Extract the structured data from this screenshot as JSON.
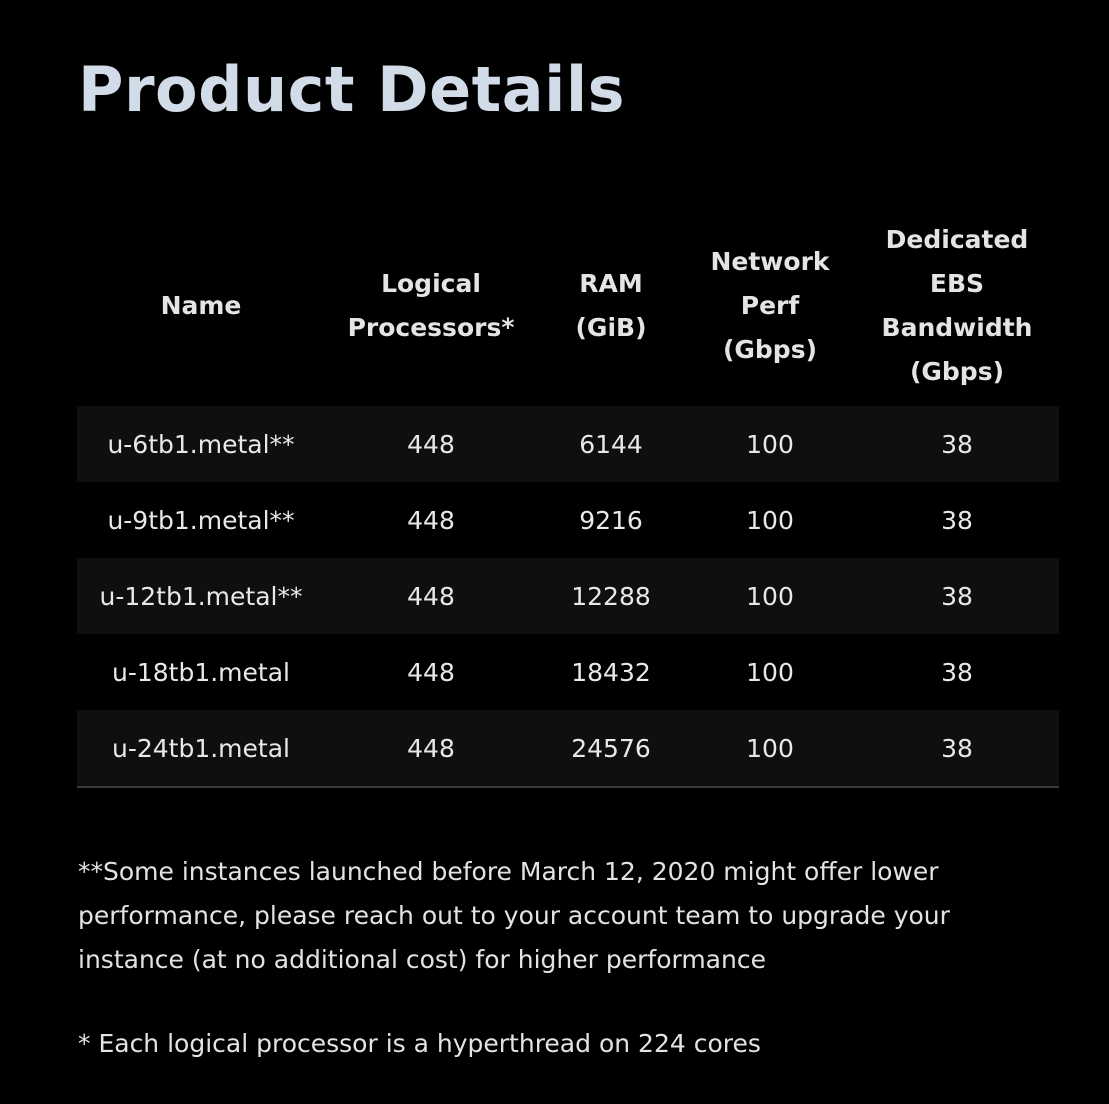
{
  "page": {
    "title": "Product Details"
  },
  "table": {
    "headers": {
      "name": "Name",
      "logical_processors": [
        "Logical",
        "Processors*"
      ],
      "ram": [
        "RAM",
        "(GiB)"
      ],
      "network": [
        "Network",
        "Perf",
        "(Gbps)"
      ],
      "ebs": [
        "Dedicated",
        "EBS",
        "Bandwidth",
        "(Gbps)"
      ]
    },
    "rows": [
      {
        "name": "u-6tb1.metal**",
        "logical_processors": "448",
        "ram": "6144",
        "network": "100",
        "ebs": "38"
      },
      {
        "name": "u-9tb1.metal**",
        "logical_processors": "448",
        "ram": "9216",
        "network": "100",
        "ebs": "38"
      },
      {
        "name": "u-12tb1.metal**",
        "logical_processors": "448",
        "ram": "12288",
        "network": "100",
        "ebs": "38"
      },
      {
        "name": "u-18tb1.metal",
        "logical_processors": "448",
        "ram": "18432",
        "network": "100",
        "ebs": "38"
      },
      {
        "name": "u-24tb1.metal",
        "logical_processors": "448",
        "ram": "24576",
        "network": "100",
        "ebs": "38"
      }
    ]
  },
  "footnotes": {
    "double_asterisk": "**Some instances launched before March 12, 2020 might offer lower performance, please reach out to your account team to upgrade your instance (at no additional cost) for higher performance",
    "single_asterisk": "* Each logical processor is a hyperthread on 224 cores"
  },
  "colors": {
    "background": "#000000",
    "title": "#d2dbe8",
    "row_stripe": "#0f0f0f",
    "table_border": "#3a3a3a"
  }
}
